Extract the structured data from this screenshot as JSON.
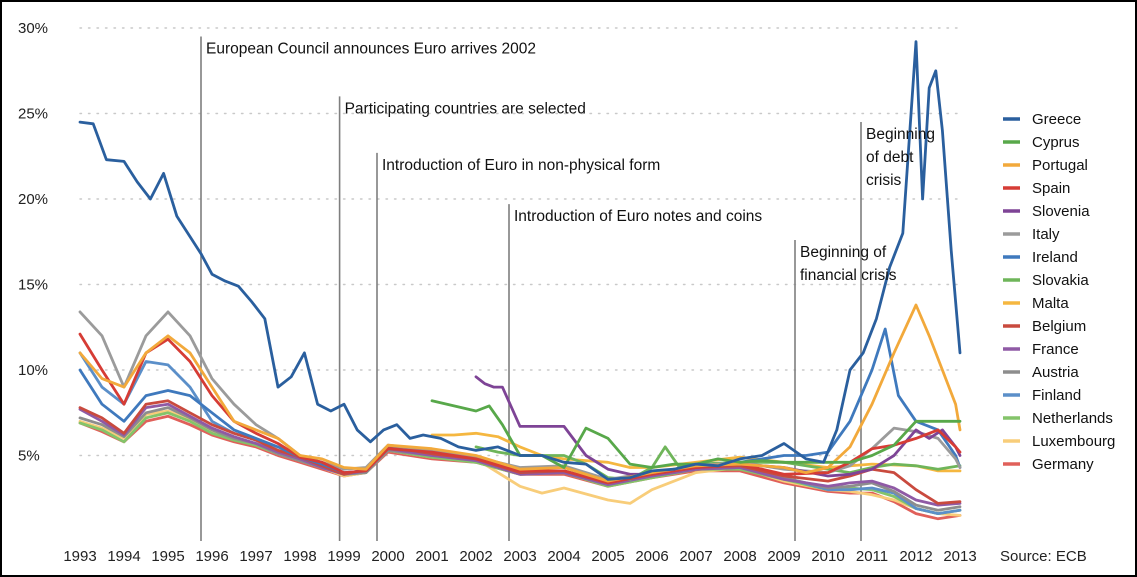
{
  "chart_data": {
    "type": "line",
    "source_note": "Source: ECB",
    "ylim": [
      0,
      30
    ],
    "y_ticks": [
      {
        "value": 5,
        "label": "5%"
      },
      {
        "value": 10,
        "label": "10%"
      },
      {
        "value": 15,
        "label": "15%"
      },
      {
        "value": 20,
        "label": "20%"
      },
      {
        "value": 25,
        "label": "25%"
      },
      {
        "value": 30,
        "label": "30%"
      }
    ],
    "xlim": [
      1993,
      2013
    ],
    "x_ticks": [
      1993,
      1994,
      1995,
      1996,
      1997,
      1998,
      1999,
      2000,
      2001,
      2002,
      2003,
      2004,
      2005,
      2006,
      2007,
      2008,
      2009,
      2010,
      2011,
      2012,
      2013
    ],
    "grid": "dotted horizontal",
    "legend_position": "right",
    "annotations": [
      {
        "x": 1995.75,
        "y": 29.5,
        "lines": [
          "European Council announces Euro arrives 2002"
        ]
      },
      {
        "x": 1998.9,
        "y": 26.0,
        "lines": [
          "Participating countries are selected"
        ]
      },
      {
        "x": 1999.75,
        "y": 22.7,
        "lines": [
          "Introduction of Euro in non-physical form"
        ]
      },
      {
        "x": 2002.75,
        "y": 19.7,
        "lines": [
          "Introduction of Euro notes and coins"
        ]
      },
      {
        "x": 2009.25,
        "y": 17.6,
        "lines": [
          "Beginning of",
          "financial crisis"
        ]
      },
      {
        "x": 2010.75,
        "y": 24.5,
        "lines": [
          "Beginning",
          "of debt",
          "crisis"
        ]
      }
    ],
    "series": [
      {
        "name": "Greece",
        "color": "#2a5f9e",
        "x": [
          1993,
          1993.3,
          1993.6,
          1994,
          1994.3,
          1994.6,
          1994.9,
          1995.2,
          1995.5,
          1995.75,
          1996,
          1996.3,
          1996.6,
          1996.9,
          1997.2,
          1997.5,
          1997.8,
          1998.1,
          1998.4,
          1998.7,
          1999,
          1999.3,
          1999.6,
          1999.9,
          2000.2,
          2000.5,
          2000.8,
          2001.2,
          2001.6,
          2002,
          2002.5,
          2003,
          2003.5,
          2004,
          2004.5,
          2005,
          2005.5,
          2006,
          2006.5,
          2007,
          2007.5,
          2008,
          2008.5,
          2009,
          2009.5,
          2009.9,
          2010.2,
          2010.5,
          2010.8,
          2011.1,
          2011.4,
          2011.7,
          2012,
          2012.15,
          2012.3,
          2012.45,
          2012.6,
          2012.8,
          2013
        ],
        "y": [
          24.5,
          24.4,
          22.3,
          22.2,
          21.0,
          20.0,
          21.5,
          19.0,
          17.8,
          16.8,
          15.6,
          15.2,
          14.9,
          14.0,
          13.0,
          9.0,
          9.6,
          11.0,
          8.0,
          7.6,
          8.0,
          6.5,
          5.8,
          6.5,
          6.8,
          6.0,
          6.2,
          6.0,
          5.5,
          5.3,
          5.5,
          5.0,
          5.0,
          4.6,
          4.5,
          3.6,
          3.7,
          4.1,
          4.2,
          4.5,
          4.4,
          4.8,
          5.0,
          5.7,
          4.8,
          4.6,
          6.5,
          10.0,
          11.0,
          13.0,
          16.0,
          18.0,
          29.2,
          20.0,
          26.5,
          27.5,
          24.0,
          17.0,
          11.0
        ]
      },
      {
        "name": "Cyprus",
        "color": "#58a84a",
        "x": [
          2001,
          2001.5,
          2002,
          2002.3,
          2002.6,
          2003,
          2003.5,
          2004,
          2004.5,
          2005,
          2005.5,
          2006,
          2006.5,
          2007,
          2007.5,
          2008,
          2008.5,
          2009,
          2009.5,
          2010,
          2010.5,
          2011,
          2011.5,
          2012,
          2012.5,
          2013
        ],
        "y": [
          8.2,
          7.9,
          7.6,
          7.9,
          6.8,
          5.0,
          5.0,
          4.3,
          6.6,
          6.0,
          4.5,
          4.3,
          4.5,
          4.5,
          4.8,
          4.6,
          4.7,
          4.6,
          4.6,
          4.6,
          4.6,
          5.0,
          5.6,
          7.0,
          7.0,
          7.0
        ]
      },
      {
        "name": "Portugal",
        "color": "#f2a93b",
        "x": [
          1993,
          1993.5,
          1994,
          1994.5,
          1995,
          1995.5,
          1996,
          1996.5,
          1997,
          1997.5,
          1998,
          1998.5,
          1999,
          1999.5,
          2000,
          2001,
          2002,
          2003,
          2004,
          2005,
          2006,
          2007,
          2008,
          2009,
          2009.5,
          2010,
          2010.5,
          2011,
          2011.5,
          2012,
          2012.3,
          2012.6,
          2012.9,
          2013
        ],
        "y": [
          11.0,
          9.5,
          9.0,
          11.0,
          12.0,
          11.0,
          9.0,
          7.0,
          6.5,
          6.0,
          5.0,
          4.8,
          4.3,
          4.2,
          5.6,
          5.4,
          5.0,
          4.2,
          4.3,
          3.5,
          4.0,
          4.4,
          4.5,
          4.3,
          4.0,
          4.3,
          5.5,
          8.0,
          11.0,
          13.8,
          12.0,
          10.0,
          8.0,
          6.5
        ]
      },
      {
        "name": "Spain",
        "color": "#d63c35",
        "x": [
          1993,
          1993.5,
          1994,
          1994.5,
          1995,
          1995.5,
          1996,
          1996.5,
          1997,
          1997.5,
          1998,
          1998.5,
          1999,
          1999.5,
          2000,
          2001,
          2002,
          2003,
          2004,
          2005,
          2006,
          2007,
          2008,
          2009,
          2010,
          2010.5,
          2011,
          2011.5,
          2012,
          2012.5,
          2012.9,
          2013
        ],
        "y": [
          12.1,
          10.0,
          8.0,
          11.0,
          11.8,
          10.5,
          8.5,
          7.0,
          6.3,
          5.7,
          4.9,
          4.6,
          4.0,
          4.1,
          5.4,
          5.2,
          4.8,
          4.1,
          4.1,
          3.4,
          3.9,
          4.3,
          4.5,
          3.9,
          4.0,
          4.6,
          5.4,
          5.6,
          6.0,
          6.5,
          5.5,
          5.2
        ]
      },
      {
        "name": "Slovenia",
        "color": "#7e4496",
        "x": [
          2002,
          2002.2,
          2002.4,
          2002.6,
          2003,
          2003.5,
          2004,
          2004.5,
          2005,
          2005.5,
          2006,
          2007,
          2008,
          2009,
          2010,
          2010.5,
          2011,
          2011.5,
          2012,
          2012.3,
          2012.6,
          2012.9,
          2013
        ],
        "y": [
          9.6,
          9.2,
          9.0,
          9.0,
          6.7,
          6.7,
          6.7,
          5.0,
          4.2,
          3.9,
          3.9,
          4.3,
          4.5,
          4.3,
          3.8,
          3.9,
          4.2,
          5.0,
          6.5,
          6.0,
          6.5,
          5.5,
          5.0
        ]
      },
      {
        "name": "Italy",
        "color": "#9b9b9b",
        "x": [
          1993,
          1993.5,
          1994,
          1994.5,
          1995,
          1995.5,
          1996,
          1996.5,
          1997,
          1997.5,
          1998,
          1998.5,
          1999,
          1999.5,
          2000,
          2001,
          2002,
          2003,
          2004,
          2005,
          2006,
          2007,
          2008,
          2009,
          2010,
          2010.5,
          2011,
          2011.5,
          2012,
          2012.5,
          2012.9,
          2013
        ],
        "y": [
          13.4,
          12.0,
          9.0,
          12.0,
          13.4,
          12.0,
          9.5,
          8.0,
          6.8,
          6.0,
          5.0,
          4.6,
          4.2,
          4.3,
          5.6,
          5.3,
          4.9,
          4.3,
          4.4,
          3.6,
          4.0,
          4.4,
          4.6,
          4.2,
          4.0,
          4.4,
          5.4,
          6.6,
          6.4,
          6.0,
          4.8,
          4.3
        ]
      },
      {
        "name": "Ireland",
        "color": "#3f79bd",
        "x": [
          1993,
          1993.5,
          1994,
          1994.5,
          1995,
          1995.5,
          1996,
          1996.5,
          1997,
          1997.5,
          1998,
          1998.5,
          1999,
          1999.5,
          2000,
          2001,
          2002,
          2003,
          2004,
          2005,
          2006,
          2007,
          2008,
          2009,
          2009.5,
          2010,
          2010.5,
          2011,
          2011.3,
          2011.6,
          2012,
          2012.5,
          2012.9,
          2013
        ],
        "y": [
          10.0,
          8.0,
          7.0,
          8.5,
          8.8,
          8.5,
          7.5,
          6.5,
          6.0,
          5.5,
          4.9,
          4.5,
          4.0,
          4.1,
          5.4,
          5.2,
          4.9,
          4.1,
          4.1,
          3.4,
          3.9,
          4.3,
          4.6,
          5.0,
          5.0,
          5.2,
          7.0,
          10.0,
          12.4,
          8.5,
          7.0,
          6.5,
          5.0,
          4.3
        ]
      },
      {
        "name": "Slovakia",
        "color": "#6fb55a",
        "x": [
          2002,
          2002.5,
          2003,
          2003.5,
          2004,
          2004.5,
          2005,
          2005.5,
          2006,
          2006.3,
          2006.6,
          2007,
          2008,
          2009,
          2010,
          2010.5,
          2011,
          2011.5,
          2012,
          2012.5,
          2013
        ],
        "y": [
          5.5,
          5.2,
          5.0,
          5.0,
          5.0,
          4.5,
          3.7,
          3.6,
          4.3,
          5.5,
          4.4,
          4.5,
          4.6,
          4.6,
          4.2,
          4.0,
          4.3,
          4.5,
          4.4,
          4.2,
          4.4
        ]
      },
      {
        "name": "Malta",
        "color": "#f5b740",
        "x": [
          2001,
          2001.5,
          2002,
          2002.5,
          2003,
          2003.5,
          2004,
          2004.5,
          2005,
          2005.5,
          2006,
          2007,
          2008,
          2009,
          2010,
          2011,
          2012,
          2012.5,
          2013
        ],
        "y": [
          6.2,
          6.2,
          6.3,
          6.1,
          5.5,
          5.0,
          4.8,
          4.7,
          4.6,
          4.3,
          4.3,
          4.6,
          4.9,
          4.6,
          4.3,
          4.5,
          4.4,
          4.1,
          4.1
        ]
      },
      {
        "name": "Belgium",
        "color": "#c94a3e",
        "x": [
          1993,
          1993.5,
          1994,
          1994.5,
          1995,
          1995.5,
          1996,
          1996.5,
          1997,
          1997.5,
          1998,
          1998.5,
          1999,
          1999.5,
          2000,
          2001,
          2002,
          2003,
          2004,
          2005,
          2006,
          2007,
          2008,
          2009,
          2010,
          2010.5,
          2011,
          2011.5,
          2012,
          2012.5,
          2013
        ],
        "y": [
          7.8,
          7.2,
          6.3,
          8.0,
          8.2,
          7.5,
          6.8,
          6.3,
          5.9,
          5.3,
          4.9,
          4.4,
          3.9,
          4.2,
          5.5,
          5.1,
          4.8,
          4.0,
          4.1,
          3.4,
          3.9,
          4.3,
          4.4,
          3.8,
          3.5,
          3.8,
          4.2,
          4.0,
          3.0,
          2.2,
          2.3
        ]
      },
      {
        "name": "France",
        "color": "#8f5aa5",
        "x": [
          1993,
          1993.5,
          1994,
          1994.5,
          1995,
          1995.5,
          1996,
          1996.5,
          1997,
          1997.5,
          1998,
          1998.5,
          1999,
          1999.5,
          2000,
          2001,
          2002,
          2003,
          2004,
          2005,
          2006,
          2007,
          2008,
          2009,
          2010,
          2010.5,
          2011,
          2011.5,
          2012,
          2012.5,
          2013
        ],
        "y": [
          7.7,
          7.0,
          6.2,
          7.8,
          8.0,
          7.3,
          6.6,
          6.1,
          5.7,
          5.2,
          4.8,
          4.3,
          3.9,
          4.1,
          5.4,
          5.0,
          4.7,
          3.9,
          4.0,
          3.3,
          3.8,
          4.2,
          4.3,
          3.6,
          3.2,
          3.4,
          3.5,
          3.1,
          2.4,
          2.1,
          2.2
        ]
      },
      {
        "name": "Austria",
        "color": "#8d8d8d",
        "x": [
          1993,
          1993.5,
          1994,
          1994.5,
          1995,
          1995.5,
          1996,
          1996.5,
          1997,
          1997.5,
          1998,
          1998.5,
          1999,
          1999.5,
          2000,
          2001,
          2002,
          2003,
          2004,
          2005,
          2006,
          2007,
          2008,
          2009,
          2010,
          2010.5,
          2011,
          2011.5,
          2012,
          2012.5,
          2013
        ],
        "y": [
          7.2,
          6.8,
          6.1,
          7.5,
          7.8,
          7.2,
          6.5,
          6.0,
          5.7,
          5.1,
          4.7,
          4.3,
          3.9,
          4.0,
          5.3,
          5.0,
          4.7,
          4.0,
          4.0,
          3.3,
          3.8,
          4.2,
          4.3,
          3.7,
          3.1,
          3.2,
          3.4,
          2.9,
          2.1,
          1.8,
          2.0
        ]
      },
      {
        "name": "Finland",
        "color": "#5b8fc9",
        "x": [
          1993,
          1993.5,
          1994,
          1994.5,
          1995,
          1995.5,
          1996,
          1996.5,
          1997,
          1997.5,
          1998,
          1998.5,
          1999,
          1999.5,
          2000,
          2001,
          2002,
          2003,
          2004,
          2005,
          2006,
          2007,
          2008,
          2009,
          2010,
          2010.5,
          2011,
          2011.5,
          2012,
          2012.5,
          2013
        ],
        "y": [
          11.0,
          9.0,
          8.0,
          10.5,
          10.3,
          9.0,
          7.0,
          6.3,
          5.9,
          5.3,
          4.8,
          4.3,
          3.9,
          4.1,
          5.4,
          5.0,
          4.8,
          4.0,
          4.0,
          3.3,
          3.8,
          4.2,
          4.3,
          3.7,
          3.0,
          3.0,
          3.1,
          2.8,
          1.9,
          1.6,
          1.8
        ]
      },
      {
        "name": "Netherlands",
        "color": "#84c46a",
        "x": [
          1993,
          1993.5,
          1994,
          1994.5,
          1995,
          1995.5,
          1996,
          1996.5,
          1997,
          1997.5,
          1998,
          1998.5,
          1999,
          1999.5,
          2000,
          2001,
          2002,
          2003,
          2004,
          2005,
          2006,
          2007,
          2008,
          2009,
          2010,
          2010.5,
          2011,
          2011.5,
          2012,
          2012.5,
          2013
        ],
        "y": [
          6.9,
          6.5,
          5.8,
          7.2,
          7.5,
          7.0,
          6.3,
          5.9,
          5.6,
          5.1,
          4.7,
          4.3,
          3.9,
          4.0,
          5.3,
          4.9,
          4.6,
          3.9,
          4.0,
          3.2,
          3.7,
          4.2,
          4.2,
          3.6,
          3.0,
          3.1,
          3.0,
          2.6,
          1.9,
          1.6,
          1.8
        ]
      },
      {
        "name": "Luxembourg",
        "color": "#f8cd7a",
        "x": [
          1993,
          1993.5,
          1994,
          1994.5,
          1995,
          1995.5,
          1996,
          1996.5,
          1997,
          1997.5,
          1998,
          1998.5,
          1999,
          1999.5,
          2000,
          2001,
          2002,
          2003,
          2003.5,
          2004,
          2005,
          2005.5,
          2006,
          2007,
          2008,
          2009,
          2010,
          2010.5,
          2011,
          2011.5,
          2012,
          2012.5,
          2013
        ],
        "y": [
          7.0,
          6.6,
          6.0,
          7.4,
          7.6,
          7.1,
          6.4,
          6.0,
          5.6,
          5.1,
          4.7,
          4.3,
          3.8,
          4.0,
          5.3,
          4.9,
          4.8,
          3.2,
          2.8,
          3.1,
          2.4,
          2.2,
          3.0,
          4.0,
          4.3,
          3.5,
          3.0,
          2.9,
          2.7,
          2.4,
          1.9,
          1.6,
          1.5
        ]
      },
      {
        "name": "Germany",
        "color": "#e0605a",
        "x": [
          1993,
          1993.5,
          1994,
          1994.5,
          1995,
          1995.5,
          1996,
          1996.5,
          1997,
          1997.5,
          1998,
          1998.5,
          1999,
          1999.5,
          2000,
          2001,
          2002,
          2003,
          2004,
          2005,
          2006,
          2007,
          2008,
          2009,
          2010,
          2010.5,
          2011,
          2011.5,
          2012,
          2012.5,
          2013
        ],
        "y": [
          6.9,
          6.4,
          5.8,
          7.0,
          7.3,
          6.8,
          6.2,
          5.8,
          5.5,
          5.0,
          4.6,
          4.2,
          3.8,
          4.0,
          5.2,
          4.8,
          4.6,
          3.9,
          3.9,
          3.2,
          3.7,
          4.1,
          4.1,
          3.4,
          2.9,
          2.8,
          2.8,
          2.3,
          1.6,
          1.3,
          1.5
        ]
      }
    ]
  }
}
